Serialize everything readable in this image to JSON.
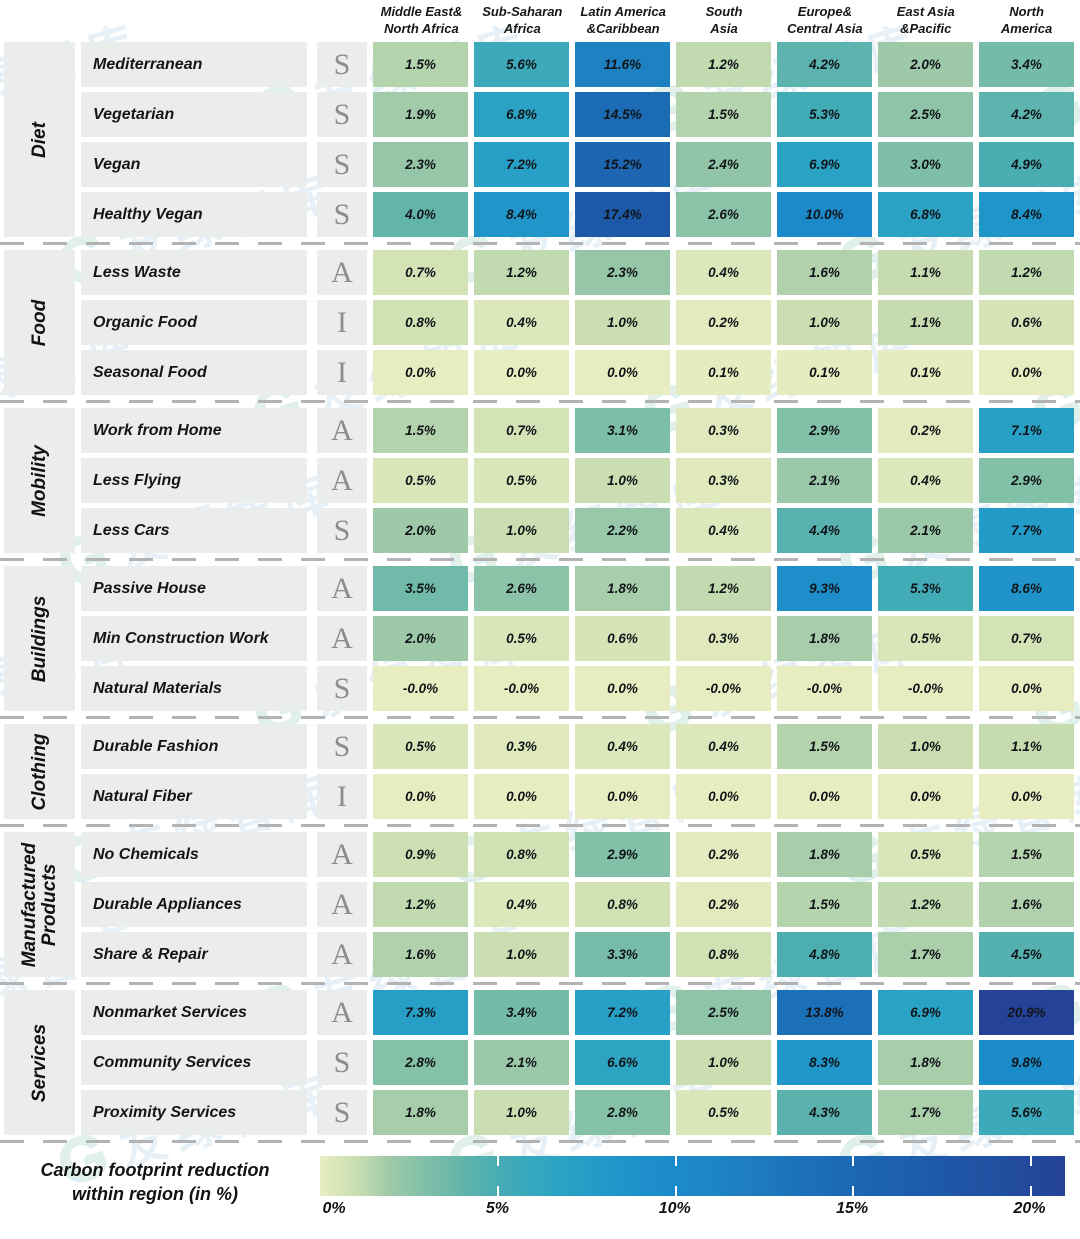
{
  "watermark": {
    "logo": "G",
    "text": "友绿智库"
  },
  "chart_data": {
    "type": "heatmap",
    "unit": "%",
    "value_note": "carbon footprint reduction within region",
    "columns": [
      [
        "Middle East&",
        "North Africa"
      ],
      [
        "Sub-Saharan",
        "Africa"
      ],
      [
        "Latin America",
        "&Caribbean"
      ],
      [
        "South",
        "Asia"
      ],
      [
        "Europe&",
        "Central Asia"
      ],
      [
        "East Asia",
        "&Pacific"
      ],
      [
        "North",
        "America"
      ]
    ],
    "groups": [
      {
        "name": "Diet",
        "rows": [
          {
            "label": "Mediterranean",
            "letter": "S",
            "values": [
              1.5,
              5.6,
              11.6,
              1.2,
              4.2,
              2.0,
              3.4
            ]
          },
          {
            "label": "Vegetarian",
            "letter": "S",
            "values": [
              1.9,
              6.8,
              14.5,
              1.5,
              5.3,
              2.5,
              4.2
            ]
          },
          {
            "label": "Vegan",
            "letter": "S",
            "values": [
              2.3,
              7.2,
              15.2,
              2.4,
              6.9,
              3.0,
              4.9
            ]
          },
          {
            "label": "Healthy Vegan",
            "letter": "S",
            "values": [
              4.0,
              8.4,
              17.4,
              2.6,
              10.0,
              6.8,
              8.4
            ]
          }
        ]
      },
      {
        "name": "Food",
        "rows": [
          {
            "label": "Less Waste",
            "letter": "A",
            "values": [
              0.7,
              1.2,
              2.3,
              0.4,
              1.6,
              1.1,
              1.2
            ]
          },
          {
            "label": "Organic Food",
            "letter": "I",
            "values": [
              0.8,
              0.4,
              1.0,
              0.2,
              1.0,
              1.1,
              0.6
            ]
          },
          {
            "label": "Seasonal Food",
            "letter": "I",
            "values": [
              0.0,
              0.0,
              0.0,
              0.1,
              0.1,
              0.1,
              0.0
            ]
          }
        ]
      },
      {
        "name": "Mobility",
        "rows": [
          {
            "label": "Work from Home",
            "letter": "A",
            "values": [
              1.5,
              0.7,
              3.1,
              0.3,
              2.9,
              0.2,
              7.1
            ]
          },
          {
            "label": "Less Flying",
            "letter": "A",
            "values": [
              0.5,
              0.5,
              1.0,
              0.3,
              2.1,
              0.4,
              2.9
            ]
          },
          {
            "label": "Less Cars",
            "letter": "S",
            "values": [
              2.0,
              1.0,
              2.2,
              0.4,
              4.4,
              2.1,
              7.7
            ]
          }
        ]
      },
      {
        "name": "Buildings",
        "rows": [
          {
            "label": "Passive House",
            "letter": "A",
            "values": [
              3.5,
              2.6,
              1.8,
              1.2,
              9.3,
              5.3,
              8.6
            ]
          },
          {
            "label": "Min Construction Work",
            "letter": "A",
            "values": [
              2.0,
              0.5,
              0.6,
              0.3,
              1.8,
              0.5,
              0.7
            ]
          },
          {
            "label": "Natural Materials",
            "letter": "S",
            "values": [
              0.0,
              0.0,
              0.0,
              0.0,
              0.0,
              0.0,
              0.0
            ],
            "labels": [
              "-0.0%",
              "-0.0%",
              "0.0%",
              "-0.0%",
              "-0.0%",
              "-0.0%",
              "0.0%"
            ]
          }
        ]
      },
      {
        "name": "Clothing",
        "rows": [
          {
            "label": "Durable Fashion",
            "letter": "S",
            "values": [
              0.5,
              0.3,
              0.4,
              0.4,
              1.5,
              1.0,
              1.1
            ]
          },
          {
            "label": "Natural Fiber",
            "letter": "I",
            "values": [
              0.0,
              0.0,
              0.0,
              0.0,
              0.0,
              0.0,
              0.0
            ]
          }
        ]
      },
      {
        "name": "Manufactured\nProducts",
        "rows": [
          {
            "label": "No Chemicals",
            "letter": "A",
            "values": [
              0.9,
              0.8,
              2.9,
              0.2,
              1.8,
              0.5,
              1.5
            ]
          },
          {
            "label": "Durable Appliances",
            "letter": "A",
            "values": [
              1.2,
              0.4,
              0.8,
              0.2,
              1.5,
              1.2,
              1.6
            ]
          },
          {
            "label": "Share & Repair",
            "letter": "A",
            "values": [
              1.6,
              1.0,
              3.3,
              0.8,
              4.8,
              1.7,
              4.5
            ]
          }
        ]
      },
      {
        "name": "Services",
        "rows": [
          {
            "label": "Nonmarket Services",
            "letter": "A",
            "values": [
              7.3,
              3.4,
              7.2,
              2.5,
              13.8,
              6.9,
              20.9
            ]
          },
          {
            "label": "Community Services",
            "letter": "S",
            "values": [
              2.8,
              2.1,
              6.6,
              1.0,
              8.3,
              1.8,
              9.8
            ]
          },
          {
            "label": "Proximity Services",
            "letter": "S",
            "values": [
              1.8,
              1.0,
              2.8,
              0.5,
              4.3,
              1.7,
              5.6
            ]
          }
        ]
      }
    ]
  },
  "legend": {
    "label_line1": "Carbon footprint reduction",
    "label_line2": "within region (in %)",
    "tick_labels": [
      "0%",
      "5%",
      "10%",
      "15%",
      "20%"
    ],
    "tick_values": [
      0,
      5,
      10,
      15,
      20
    ],
    "bar_tick_values": [
      5,
      10,
      15,
      20
    ],
    "range": [
      0,
      21
    ],
    "colormap": [
      [
        0,
        "#e8edc1"
      ],
      [
        1,
        "#cadeb1"
      ],
      [
        2,
        "#9ec9a9"
      ],
      [
        3,
        "#7fbfa7"
      ],
      [
        4,
        "#63b5ab"
      ],
      [
        5,
        "#47acb3"
      ],
      [
        6,
        "#34a8be"
      ],
      [
        7,
        "#29a1c5"
      ],
      [
        8,
        "#2198c9"
      ],
      [
        9,
        "#1e90ca"
      ],
      [
        10,
        "#1c8aca"
      ],
      [
        11,
        "#1e86c4"
      ],
      [
        12,
        "#1e7ec0"
      ],
      [
        13,
        "#1d76bb"
      ],
      [
        14,
        "#1c6eb7"
      ],
      [
        15,
        "#1c67b3"
      ],
      [
        16,
        "#1c61af"
      ],
      [
        17,
        "#1d5cab"
      ],
      [
        18,
        "#1f55a5"
      ],
      [
        19,
        "#2150a1"
      ],
      [
        20,
        "#23499c"
      ],
      [
        21,
        "#244297"
      ]
    ]
  }
}
